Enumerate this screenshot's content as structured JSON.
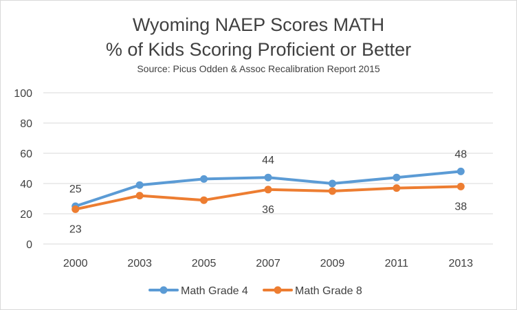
{
  "chart_data": {
    "type": "line",
    "title_line1": "Wyoming NAEP Scores MATH",
    "title_line2": "% of Kids Scoring Proficient or Better",
    "subtitle": "Source: Picus Odden & Assoc Recalibration Report 2015",
    "xlabel": "",
    "ylabel": "",
    "categories": [
      "2000",
      "2003",
      "2005",
      "2007",
      "2009",
      "2011",
      "2013"
    ],
    "ylim": [
      0,
      100
    ],
    "yticks": [
      0,
      20,
      40,
      60,
      80,
      100
    ],
    "grid": true,
    "legend_position": "bottom",
    "series": [
      {
        "name": "Math Grade 4",
        "color": "#5b9bd5",
        "values": [
          25,
          39,
          43,
          44,
          40,
          44,
          48
        ],
        "labels": {
          "0": "25",
          "3": "44",
          "6": "48"
        },
        "label_position": "above"
      },
      {
        "name": "Math Grade 8",
        "color": "#ed7d31",
        "values": [
          23,
          32,
          29,
          36,
          35,
          37,
          38
        ],
        "labels": {
          "0": "23",
          "3": "36",
          "6": "38"
        },
        "label_position": "below"
      }
    ]
  }
}
